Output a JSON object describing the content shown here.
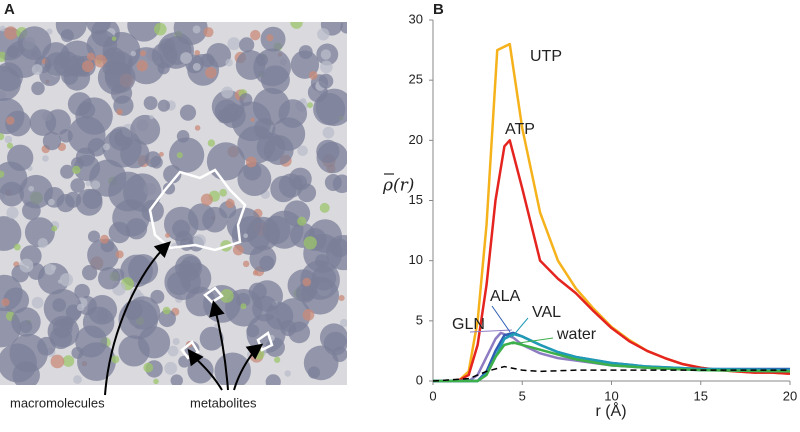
{
  "panel_a": {
    "label": "A",
    "annotations": [
      "macromolecules",
      "metabolites"
    ]
  },
  "chart_data": {
    "type": "line",
    "panel_label": "B",
    "ylabel": "ρ(r)",
    "xlabel": "r (Å)",
    "xlim": [
      0,
      20
    ],
    "ylim": [
      0,
      30
    ],
    "xticks": [
      0,
      5,
      10,
      15,
      20
    ],
    "yticks": [
      0,
      5,
      10,
      15,
      20,
      25,
      30
    ],
    "series": [
      {
        "name": "UTP",
        "color": "#f5b21b",
        "x": [
          0,
          1,
          1.5,
          2,
          2.5,
          3,
          3.6,
          4.3,
          5,
          6,
          7,
          8,
          9,
          10,
          11,
          12,
          13,
          14,
          15,
          16,
          17,
          18,
          19,
          20
        ],
        "values": [
          0,
          0,
          0.1,
          0.8,
          5,
          13,
          27.5,
          28,
          21,
          14,
          10,
          7.7,
          6,
          4.5,
          3.4,
          2.5,
          1.9,
          1.4,
          1.1,
          0.9,
          0.8,
          0.7,
          0.7,
          0.6
        ]
      },
      {
        "name": "ATP",
        "color": "#e52420",
        "x": [
          0,
          1,
          1.5,
          2,
          2.5,
          3,
          3.5,
          4,
          4.3,
          5,
          6,
          7,
          8,
          9,
          10,
          11,
          12,
          13,
          14,
          15,
          16,
          17,
          18,
          19,
          20
        ],
        "values": [
          0,
          0,
          0.1,
          0.5,
          3,
          8,
          15,
          19.5,
          20,
          16,
          10,
          8.5,
          7.3,
          5.8,
          4.4,
          3.3,
          2.5,
          1.9,
          1.4,
          1.1,
          0.9,
          0.8,
          0.7,
          0.7,
          0.6
        ]
      },
      {
        "name": "GLN",
        "color": "#8e7cc3",
        "x": [
          0,
          2,
          2.5,
          3,
          3.5,
          3.8,
          4.5,
          5,
          6,
          7,
          8,
          10,
          12,
          15,
          20
        ],
        "values": [
          0,
          0,
          0.5,
          2,
          3.5,
          4,
          3.6,
          3,
          2.3,
          1.9,
          1.7,
          1.3,
          1.1,
          0.9,
          0.8
        ]
      },
      {
        "name": "ALA",
        "color": "#2f5fb3",
        "x": [
          0,
          2.5,
          3,
          3.5,
          4,
          4.5,
          5,
          6,
          7,
          8,
          10,
          12,
          15,
          20
        ],
        "values": [
          0,
          0,
          0.8,
          2.5,
          3.8,
          4,
          3.7,
          3,
          2.4,
          2,
          1.5,
          1.2,
          1,
          1
        ]
      },
      {
        "name": "VAL",
        "color": "#1f9bb5",
        "x": [
          0,
          2.5,
          3,
          3.5,
          4,
          4.5,
          5,
          6,
          7,
          8,
          10,
          12,
          15,
          20
        ],
        "values": [
          0,
          0,
          0.6,
          2,
          3.5,
          3.9,
          3.7,
          3,
          2.4,
          2,
          1.5,
          1.2,
          1,
          0.9
        ]
      },
      {
        "name": "water",
        "color": "#3db04a",
        "x": [
          0,
          2.5,
          3,
          3.5,
          4,
          4.5,
          5,
          6,
          7,
          8,
          10,
          12,
          15,
          20
        ],
        "values": [
          0,
          0,
          0.5,
          2,
          3,
          3.2,
          3,
          2.6,
          2.2,
          1.8,
          1.3,
          1.1,
          0.9,
          0.8
        ]
      },
      {
        "color": "#000000",
        "dash": true,
        "x": [
          0,
          2,
          3,
          4,
          5,
          6,
          8,
          10,
          15,
          20
        ],
        "values": [
          0,
          0.2,
          0.8,
          1.2,
          0.9,
          0.8,
          0.9,
          0.9,
          0.9,
          0.9
        ]
      }
    ]
  }
}
